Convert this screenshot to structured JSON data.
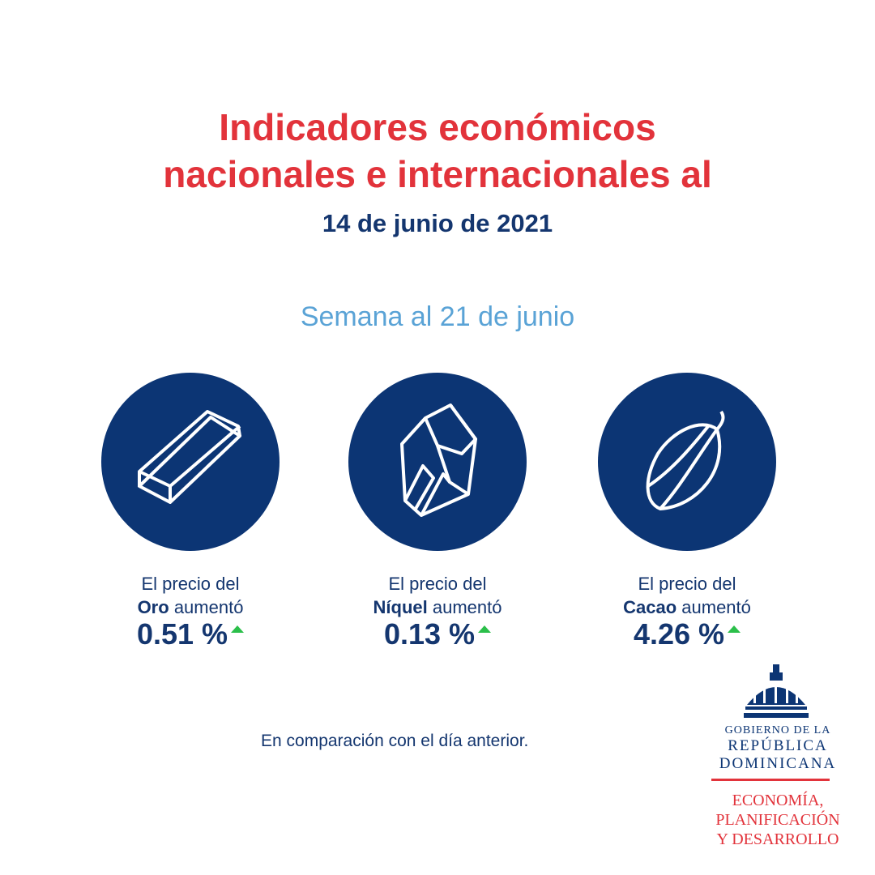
{
  "header": {
    "title_lines": [
      "Indicadores económicos",
      "nacionales e internacionales al"
    ],
    "date": "14 de junio de 2021",
    "subtitle": "Semana al 21 de junio"
  },
  "items": [
    {
      "lead": "El precio del",
      "commodity": "Oro",
      "verb": "aumentó",
      "change": "0.51 %"
    },
    {
      "lead": "El precio del",
      "commodity": "Níquel",
      "verb": "aumentó",
      "change": "0.13 %"
    },
    {
      "lead": "El precio del",
      "commodity": "Cacao",
      "verb": "aumentó",
      "change": "4.26 %"
    }
  ],
  "footnote": "En comparación con el día anterior.",
  "logo": {
    "gov_lines": [
      "GOBIERNO DE LA",
      "REPÚBLICA",
      "DOMINICANA"
    ],
    "ministry_lines": [
      "ECONOMÍA,",
      "PLANIFICACIÓN",
      "Y DESARROLLO"
    ]
  }
}
